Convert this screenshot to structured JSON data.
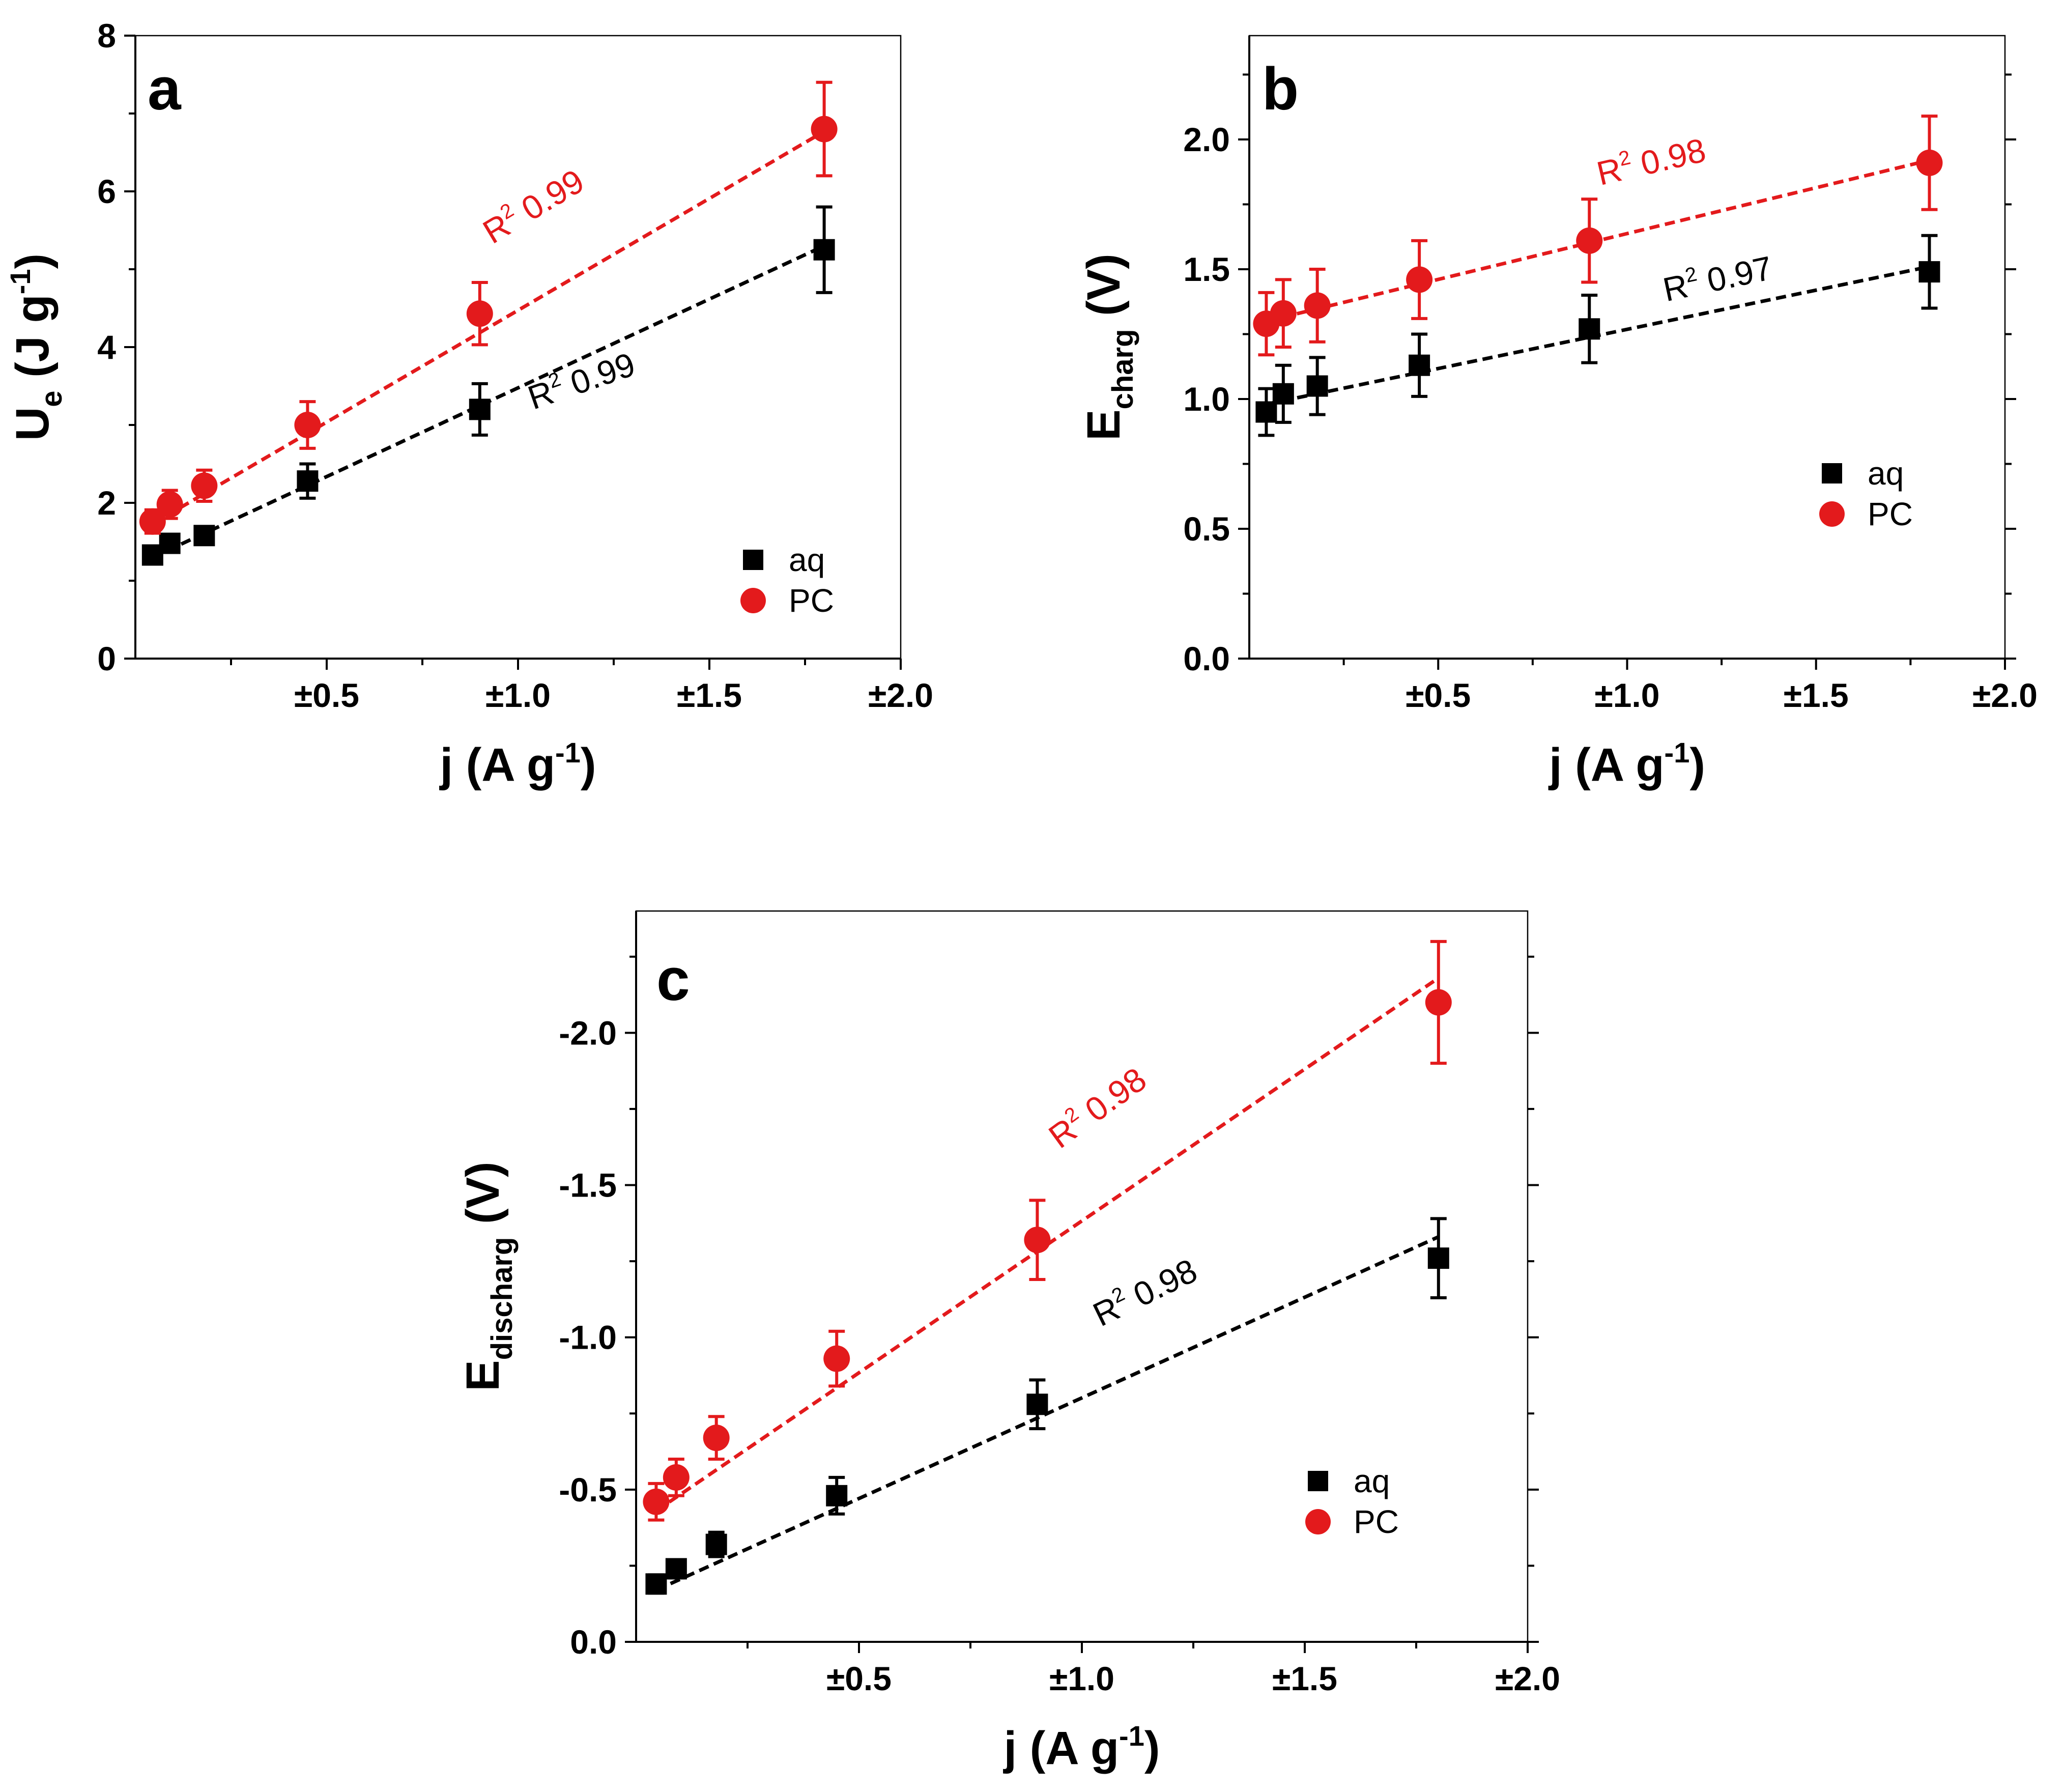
{
  "chart_data": [
    {
      "panel": "a",
      "type": "scatter",
      "xlabel": "j (A g",
      "xlabel_sup": "-1",
      "xlabel_close": ")",
      "ylabel": "U",
      "ylabel_sub": "e",
      "ylabel_rest": " (J g",
      "ylabel_sup": "-1",
      "ylabel_close": ")",
      "xlim": [
        0,
        2.0
      ],
      "ylim": [
        0,
        8
      ],
      "xticks": [
        {
          "v": 0.5,
          "label": "±0.5"
        },
        {
          "v": 1.0,
          "label": "±1.0"
        },
        {
          "v": 1.5,
          "label": "±1.5"
        },
        {
          "v": 2.0,
          "label": "±2.0"
        }
      ],
      "yticks": [
        {
          "v": 0,
          "label": "0"
        },
        {
          "v": 2,
          "label": "2"
        },
        {
          "v": 4,
          "label": "4"
        },
        {
          "v": 6,
          "label": "6"
        },
        {
          "v": 8,
          "label": "8"
        }
      ],
      "legend_position": "bottom-right",
      "series": [
        {
          "name": "aq",
          "marker": "square",
          "color": "#000000",
          "x": [
            0.045,
            0.09,
            0.18,
            0.45,
            0.9,
            1.8
          ],
          "y": [
            1.33,
            1.48,
            1.58,
            2.28,
            3.2,
            5.25
          ],
          "err": [
            0.06,
            0.1,
            0.1,
            0.22,
            0.33,
            0.55
          ],
          "fit": {
            "x": [
              0.045,
              1.8
            ],
            "y": [
              1.3,
              5.3
            ]
          },
          "r2_prefix": "R",
          "r2_sup": "2",
          "r2_value": " 0.99"
        },
        {
          "name": "PC",
          "marker": "circle",
          "color": "#e31a1c",
          "x": [
            0.045,
            0.09,
            0.18,
            0.45,
            0.9,
            1.8
          ],
          "y": [
            1.76,
            1.98,
            2.22,
            3.0,
            4.43,
            6.8
          ],
          "err": [
            0.15,
            0.18,
            0.2,
            0.3,
            0.4,
            0.6
          ],
          "fit": {
            "x": [
              0.045,
              1.8
            ],
            "y": [
              1.73,
              6.77
            ]
          },
          "r2_prefix": "R",
          "r2_sup": "2",
          "r2_value": " 0.99"
        }
      ]
    },
    {
      "panel": "b",
      "type": "scatter",
      "xlabel": "j (A g",
      "xlabel_sup": "-1",
      "xlabel_close": ")",
      "ylabel": "E",
      "ylabel_sub": "charg",
      "ylabel_rest": " (V)",
      "ylabel_sup": "",
      "ylabel_close": "",
      "xlim": [
        0,
        2.0
      ],
      "ylim": [
        0,
        2.4
      ],
      "xticks": [
        {
          "v": 0.5,
          "label": "±0.5"
        },
        {
          "v": 1.0,
          "label": "±1.0"
        },
        {
          "v": 1.5,
          "label": "±1.5"
        },
        {
          "v": 2.0,
          "label": "±2.0"
        }
      ],
      "yticks": [
        {
          "v": 0.0,
          "label": "0.0"
        },
        {
          "v": 0.5,
          "label": "0.5"
        },
        {
          "v": 1.0,
          "label": "1.0"
        },
        {
          "v": 1.5,
          "label": "1.5"
        },
        {
          "v": 2.0,
          "label": "2.0"
        }
      ],
      "legend_position": "right",
      "series": [
        {
          "name": "aq",
          "marker": "square",
          "color": "#000000",
          "x": [
            0.045,
            0.09,
            0.18,
            0.45,
            0.9,
            1.8
          ],
          "y": [
            0.95,
            1.02,
            1.05,
            1.13,
            1.27,
            1.49
          ],
          "err": [
            0.09,
            0.11,
            0.11,
            0.12,
            0.13,
            0.14
          ],
          "fit": {
            "x": [
              0.045,
              1.8
            ],
            "y": [
              0.98,
              1.51
            ]
          },
          "r2_prefix": "R",
          "r2_sup": "2",
          "r2_value": " 0.97"
        },
        {
          "name": "PC",
          "marker": "circle",
          "color": "#e31a1c",
          "x": [
            0.045,
            0.09,
            0.18,
            0.45,
            0.9,
            1.8
          ],
          "y": [
            1.29,
            1.33,
            1.36,
            1.46,
            1.61,
            1.91
          ],
          "err": [
            0.12,
            0.13,
            0.14,
            0.15,
            0.16,
            0.18
          ],
          "fit": {
            "x": [
              0.045,
              1.8
            ],
            "y": [
              1.3,
              1.92
            ]
          },
          "r2_prefix": "R",
          "r2_sup": "2",
          "r2_value": " 0.98"
        }
      ]
    },
    {
      "panel": "c",
      "type": "scatter",
      "xlabel": "j (A g",
      "xlabel_sup": "-1",
      "xlabel_close": ")",
      "ylabel": "E",
      "ylabel_sub": "discharg",
      "ylabel_rest": " (V)",
      "ylabel_sup": "",
      "ylabel_close": "",
      "xlim": [
        0,
        2.0
      ],
      "ylim": [
        0,
        2.4
      ],
      "xticks": [
        {
          "v": 0.5,
          "label": "±0.5"
        },
        {
          "v": 1.0,
          "label": "±1.0"
        },
        {
          "v": 1.5,
          "label": "±1.5"
        },
        {
          "v": 2.0,
          "label": "±2.0"
        }
      ],
      "yticks": [
        {
          "v": 0.0,
          "label": "0.0"
        },
        {
          "v": 0.5,
          "label": "-0.5"
        },
        {
          "v": 1.0,
          "label": "-1.0"
        },
        {
          "v": 1.5,
          "label": "-1.5"
        },
        {
          "v": 2.0,
          "label": "-2.0"
        }
      ],
      "legend_position": "bottom-right",
      "series": [
        {
          "name": "aq",
          "marker": "square",
          "color": "#000000",
          "x": [
            0.045,
            0.09,
            0.18,
            0.45,
            0.9,
            1.8
          ],
          "y": [
            0.19,
            0.24,
            0.32,
            0.48,
            0.78,
            1.26
          ],
          "err": [
            0.03,
            0.03,
            0.04,
            0.06,
            0.08,
            0.13
          ],
          "fit": {
            "x": [
              0.045,
              1.8
            ],
            "y": [
              0.17,
              1.33
            ]
          },
          "r2_prefix": "R",
          "r2_sup": "2",
          "r2_value": " 0.98"
        },
        {
          "name": "PC",
          "marker": "circle",
          "color": "#e31a1c",
          "x": [
            0.045,
            0.09,
            0.18,
            0.45,
            0.9,
            1.8
          ],
          "y": [
            0.46,
            0.54,
            0.67,
            0.93,
            1.32,
            2.1
          ],
          "err": [
            0.06,
            0.06,
            0.07,
            0.09,
            0.13,
            0.2
          ],
          "fit": {
            "x": [
              0.045,
              1.8
            ],
            "y": [
              0.43,
              2.18
            ]
          },
          "r2_prefix": "R",
          "r2_sup": "2",
          "r2_value": " 0.98"
        }
      ]
    }
  ]
}
